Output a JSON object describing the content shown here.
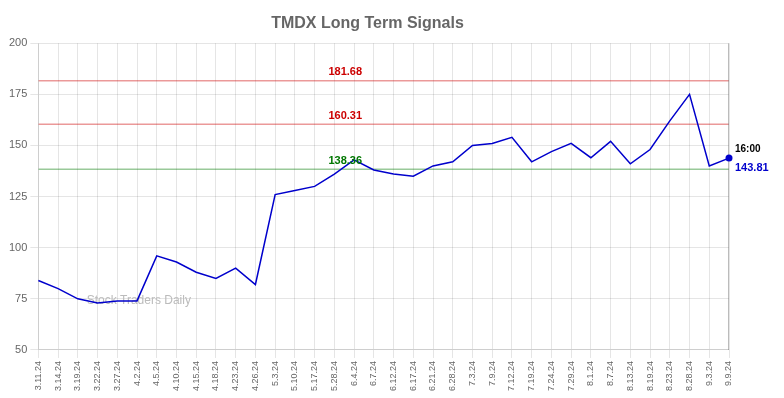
{
  "chart_data": {
    "type": "line",
    "title": "TMDX Long Term Signals",
    "categories": [
      "3.11.24",
      "3.14.24",
      "3.19.24",
      "3.22.24",
      "3.27.24",
      "4.2.24",
      "4.5.24",
      "4.10.24",
      "4.15.24",
      "4.18.24",
      "4.23.24",
      "4.26.24",
      "5.3.24",
      "5.10.24",
      "5.17.24",
      "5.28.24",
      "6.4.24",
      "6.7.24",
      "6.12.24",
      "6.17.24",
      "6.21.24",
      "6.28.24",
      "7.3.24",
      "7.9.24",
      "7.12.24",
      "7.19.24",
      "7.24.24",
      "7.29.24",
      "8.1.24",
      "8.7.24",
      "8.13.24",
      "8.19.24",
      "8.23.24",
      "8.28.24",
      "9.3.24",
      "9.9.24"
    ],
    "values": [
      84,
      80,
      75,
      73,
      74,
      74,
      96,
      93,
      88,
      85,
      90,
      82,
      126,
      128,
      130,
      136,
      143,
      138,
      136,
      135,
      140,
      142,
      150,
      151,
      154,
      142,
      147,
      151,
      144,
      152,
      141,
      148,
      162,
      175,
      140,
      143.81
    ],
    "color": "#0000cc",
    "ylim": [
      50,
      200
    ],
    "yticks": [
      50,
      75,
      100,
      125,
      150,
      175,
      200
    ],
    "grid": true,
    "reference_lines": [
      {
        "value": 181.68,
        "label": "181.68",
        "color": "#cc0000"
      },
      {
        "value": 160.31,
        "label": "160.31",
        "color": "#cc0000"
      },
      {
        "value": 138.36,
        "label": "138.36",
        "color": "#007700"
      }
    ],
    "last_point": {
      "label": "16:00",
      "value": 143.81
    },
    "watermark": "Stock Traders Daily"
  }
}
